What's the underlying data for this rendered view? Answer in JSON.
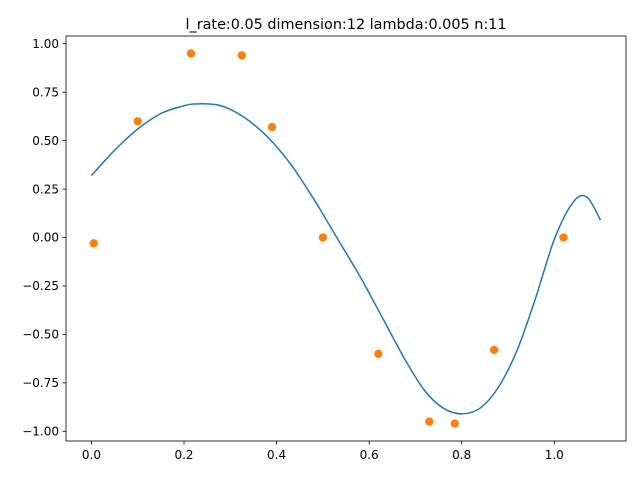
{
  "chart_data": {
    "type": "scatter",
    "title": "l_rate:0.05 dimension:12 lambda:0.005 n:11",
    "xlabel": "",
    "ylabel": "",
    "xlim": [
      -0.055,
      1.155
    ],
    "ylim": [
      -1.05,
      1.04
    ],
    "grid": false,
    "x_ticks": [
      0.0,
      0.2,
      0.4,
      0.6,
      0.8,
      1.0
    ],
    "x_tick_labels": [
      "0.0",
      "0.2",
      "0.4",
      "0.6",
      "0.8",
      "1.0"
    ],
    "y_ticks": [
      1.0,
      0.75,
      0.5,
      0.25,
      0.0,
      -0.25,
      -0.5,
      -0.75,
      -1.0
    ],
    "y_tick_labels": [
      "1.00",
      "0.75",
      "0.50",
      "0.25",
      "0.00",
      "−0.25",
      "−0.50",
      "−0.75",
      "−1.00"
    ],
    "series": [
      {
        "type": "line",
        "color": "#1f77b4",
        "x": [
          0.0,
          0.05,
          0.1,
          0.15,
          0.2,
          0.23,
          0.28,
          0.33,
          0.38,
          0.43,
          0.48,
          0.53,
          0.58,
          0.63,
          0.68,
          0.72,
          0.76,
          0.8,
          0.84,
          0.88,
          0.92,
          0.96,
          1.0,
          1.04,
          1.07,
          1.1
        ],
        "y": [
          0.32,
          0.45,
          0.56,
          0.64,
          0.68,
          0.69,
          0.68,
          0.62,
          0.52,
          0.38,
          0.2,
          0.0,
          -0.2,
          -0.42,
          -0.64,
          -0.79,
          -0.88,
          -0.91,
          -0.88,
          -0.77,
          -0.58,
          -0.31,
          -0.01,
          0.18,
          0.21,
          0.09
        ]
      },
      {
        "type": "scatter",
        "color": "#ff7f0e",
        "x": [
          0.005,
          0.1,
          0.215,
          0.325,
          0.39,
          0.5,
          0.62,
          0.73,
          0.785,
          0.87,
          1.02
        ],
        "y": [
          -0.03,
          0.6,
          0.95,
          0.94,
          0.57,
          0.0,
          -0.6,
          -0.95,
          -0.96,
          -0.58,
          0.0
        ]
      }
    ]
  }
}
